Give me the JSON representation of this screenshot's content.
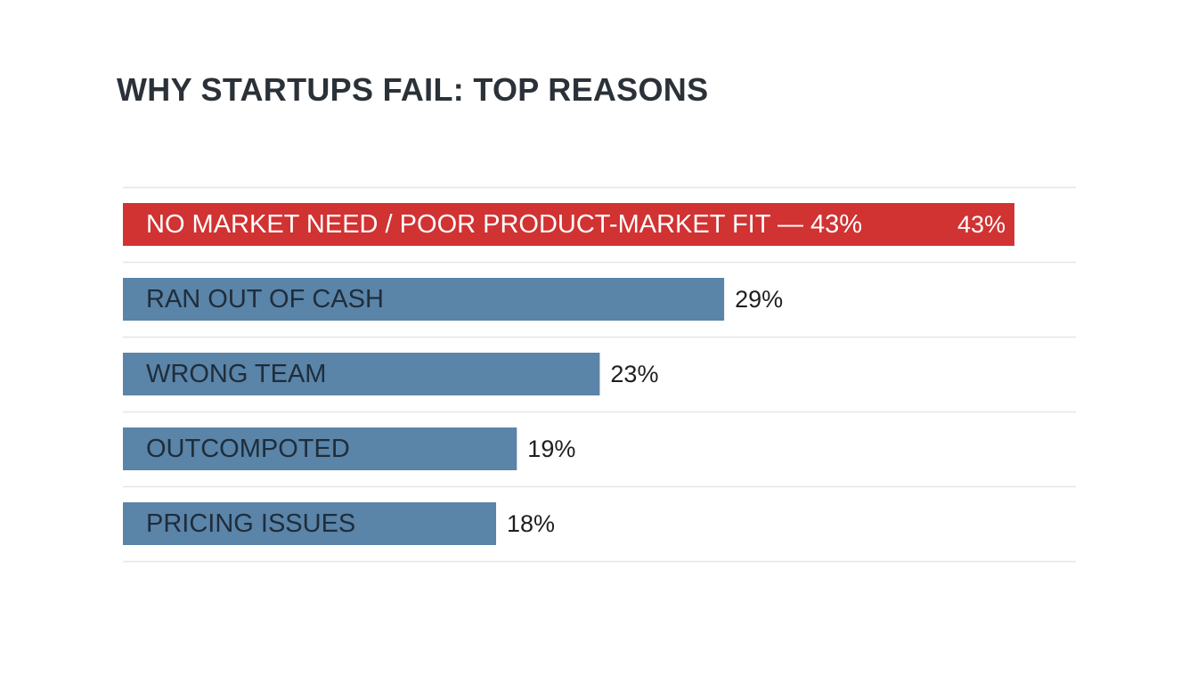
{
  "chart_data": {
    "type": "bar",
    "orientation": "horizontal",
    "title": "WHY STARTUPS FAIL: TOP REASONS",
    "categories": [
      "NO MARKET NEED / POOR PRODUCT-MARKET FIT — 43%",
      "RAN OUT OF CASH",
      "WRONG TEAM",
      "OUTCOMPOTED",
      "PRICING ISSUES"
    ],
    "values": [
      43,
      29,
      23,
      19,
      18
    ],
    "value_labels": [
      "43%",
      "29%",
      "23%",
      "19%",
      "18%"
    ],
    "unit": "%",
    "highlight_index": 0,
    "colors": {
      "highlight": "#d13232",
      "default": "#5a84a8",
      "text_on_highlight": "#ffffff",
      "text_on_default": "#1f2d3a",
      "value_text": "#1f1f1f",
      "title": "#2b3138",
      "gridline": "#e6e6e6"
    },
    "grid": true,
    "legend": "none"
  }
}
